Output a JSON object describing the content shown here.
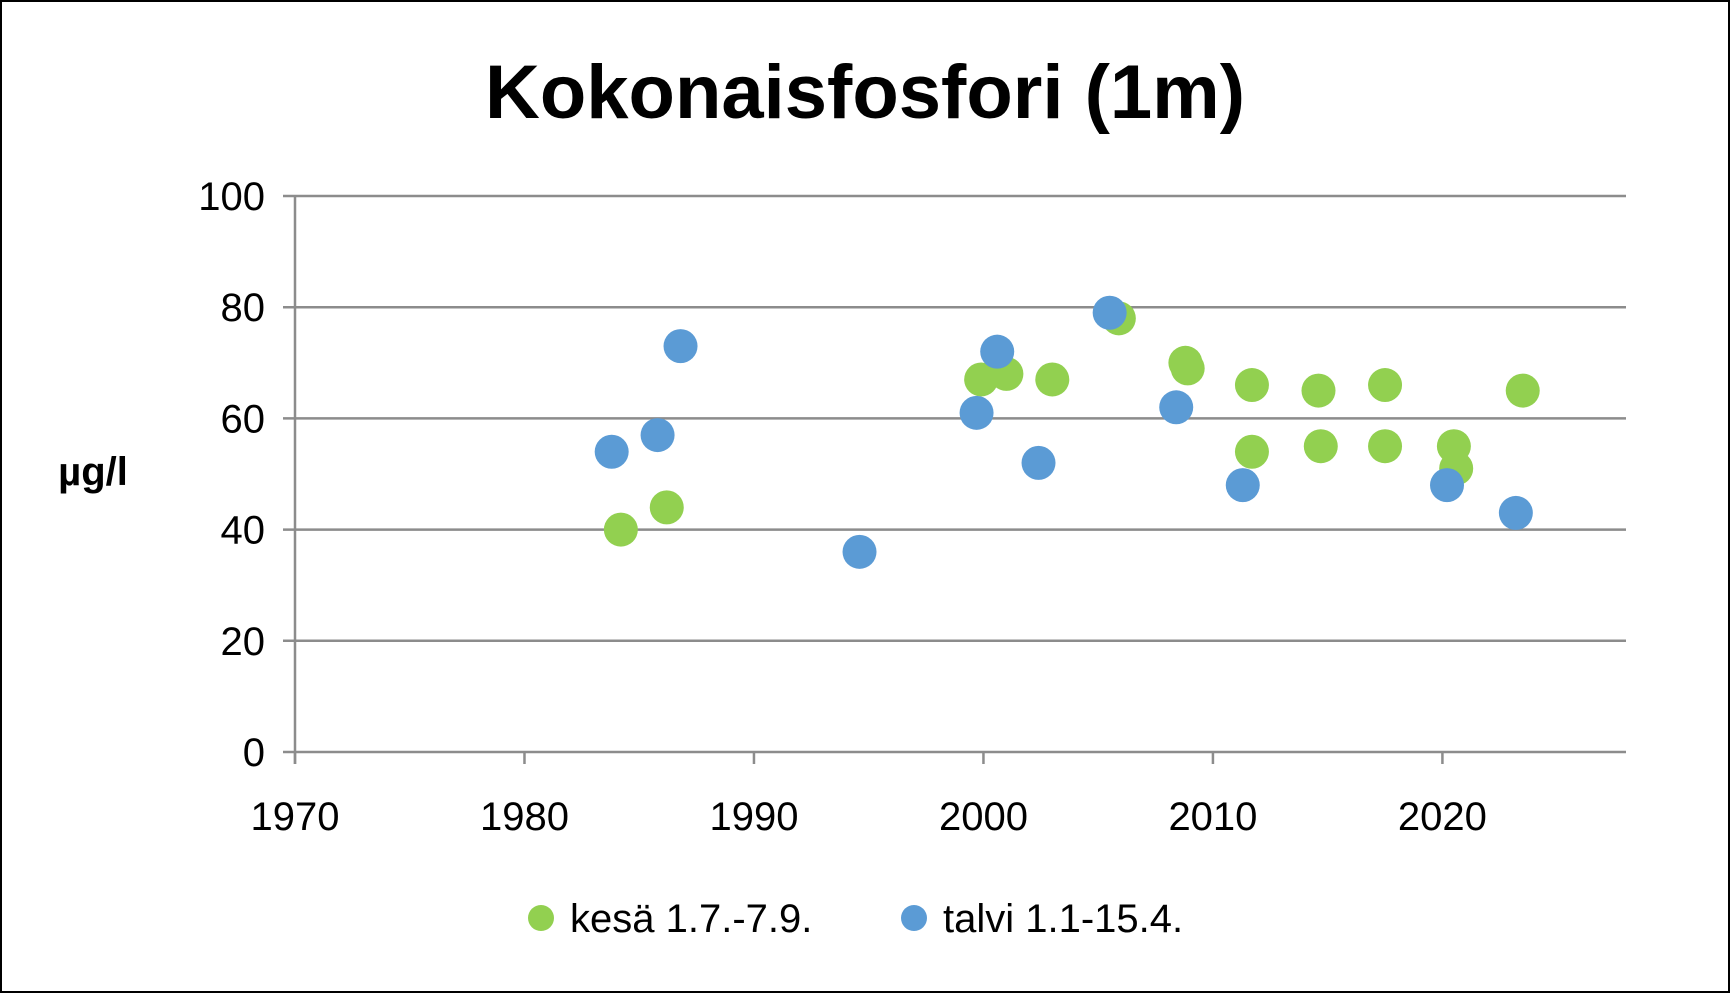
{
  "chart_data": {
    "type": "scatter",
    "title": "Kokonaisfosfori (1m)",
    "xlabel": "",
    "ylabel": "µg/l",
    "xlim": [
      1970,
      2028
    ],
    "ylim": [
      0,
      100
    ],
    "x_ticks": [
      1970,
      1980,
      1990,
      2000,
      2010,
      2020
    ],
    "y_ticks": [
      0,
      20,
      40,
      60,
      80,
      100
    ],
    "grid": true,
    "legend_position": "bottom",
    "series": [
      {
        "name": "kesä 1.7.-7.9.",
        "color": "#92d050",
        "points": [
          {
            "x": 1984.2,
            "y": 40
          },
          {
            "x": 1986.2,
            "y": 44
          },
          {
            "x": 1999.9,
            "y": 67
          },
          {
            "x": 2001.0,
            "y": 68
          },
          {
            "x": 2003.0,
            "y": 67
          },
          {
            "x": 2005.9,
            "y": 78
          },
          {
            "x": 2008.8,
            "y": 70
          },
          {
            "x": 2008.9,
            "y": 69
          },
          {
            "x": 2011.7,
            "y": 66
          },
          {
            "x": 2011.7,
            "y": 54
          },
          {
            "x": 2014.6,
            "y": 65
          },
          {
            "x": 2014.7,
            "y": 55
          },
          {
            "x": 2017.5,
            "y": 66
          },
          {
            "x": 2017.5,
            "y": 55
          },
          {
            "x": 2020.5,
            "y": 55
          },
          {
            "x": 2020.6,
            "y": 51
          },
          {
            "x": 2023.5,
            "y": 65
          }
        ]
      },
      {
        "name": "talvi 1.1-15.4.",
        "color": "#5b9bd5",
        "points": [
          {
            "x": 1983.8,
            "y": 54
          },
          {
            "x": 1985.8,
            "y": 57
          },
          {
            "x": 1986.8,
            "y": 73
          },
          {
            "x": 1994.6,
            "y": 36
          },
          {
            "x": 1999.7,
            "y": 61
          },
          {
            "x": 2000.6,
            "y": 72
          },
          {
            "x": 2002.4,
            "y": 52
          },
          {
            "x": 2005.5,
            "y": 79
          },
          {
            "x": 2008.4,
            "y": 62
          },
          {
            "x": 2011.3,
            "y": 48
          },
          {
            "x": 2020.2,
            "y": 48
          },
          {
            "x": 2023.2,
            "y": 43
          }
        ]
      }
    ]
  }
}
